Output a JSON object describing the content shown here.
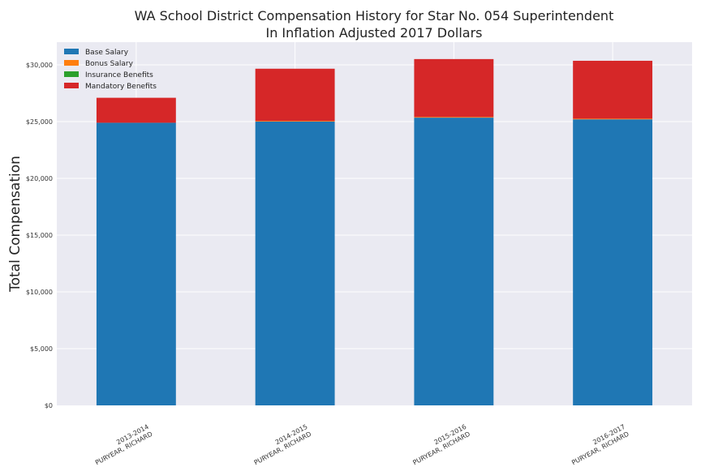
{
  "chart_data": {
    "type": "bar",
    "stacked": true,
    "title": "WA School District Compensation History for Star No. 054 Superintendent",
    "subtitle": "In Inflation Adjusted 2017 Dollars",
    "xlabel": "",
    "ylabel": "Total Compensation",
    "ylim": [
      0,
      32000
    ],
    "yticks": [
      0,
      5000,
      10000,
      15000,
      20000,
      25000,
      30000
    ],
    "ytick_labels": [
      "$0",
      "$5,000",
      "$10,000",
      "$15,000",
      "$20,000",
      "$25,000",
      "$30,000"
    ],
    "categories": [
      [
        "2013-2014",
        "PURYEAR, RICHARD"
      ],
      [
        "2014-2015",
        "PURYEAR, RICHARD"
      ],
      [
        "2015-2016",
        "PURYEAR, RICHARD"
      ],
      [
        "2016-2017",
        "PURYEAR, RICHARD"
      ]
    ],
    "series": [
      {
        "name": "Base Salary",
        "color": "#1f77b4",
        "values": [
          24900,
          25000,
          25350,
          25200
        ]
      },
      {
        "name": "Bonus Salary",
        "color": "#ff7f0e",
        "values": [
          0,
          60,
          60,
          60
        ]
      },
      {
        "name": "Insurance Benefits",
        "color": "#2ca02c",
        "values": [
          0,
          0,
          0,
          0
        ]
      },
      {
        "name": "Mandatory Benefits",
        "color": "#d62728",
        "values": [
          2200,
          4600,
          5100,
          5100
        ]
      }
    ],
    "grid": true,
    "legend_position": "top-left"
  }
}
